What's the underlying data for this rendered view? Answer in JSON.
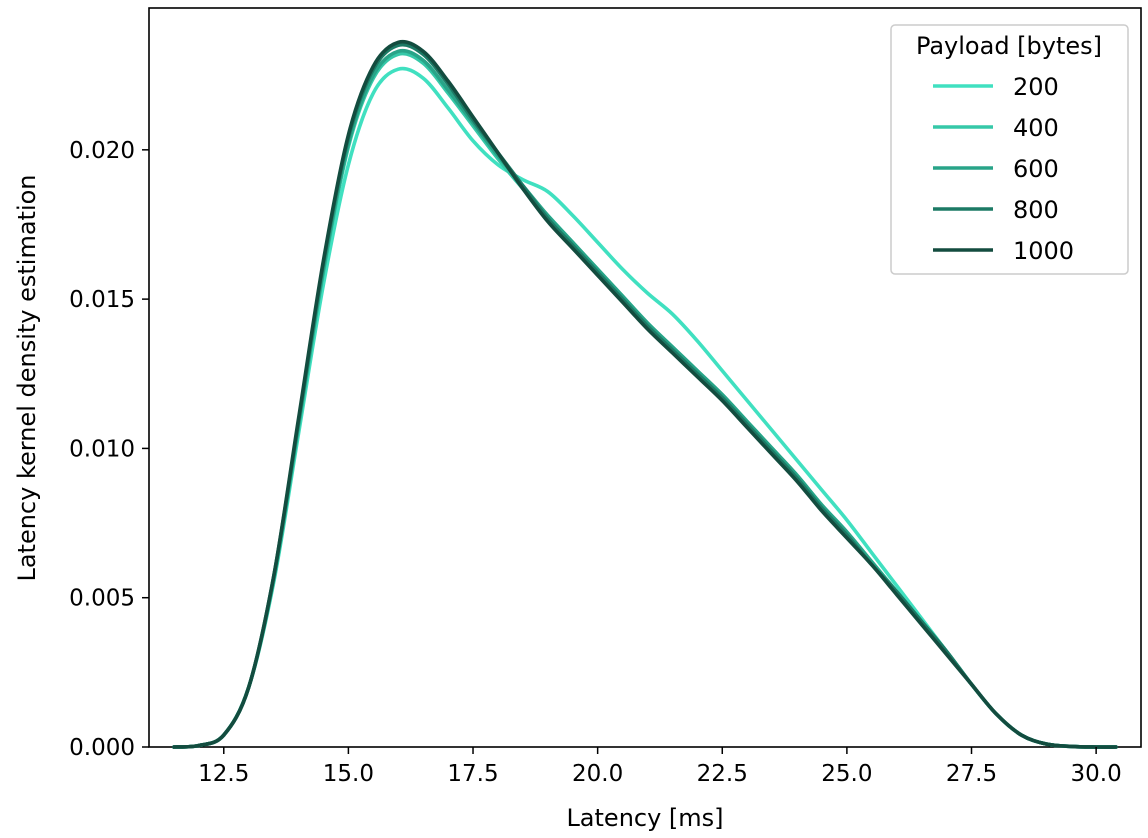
{
  "chart_data": {
    "type": "line",
    "title": "",
    "xlabel": "Latency [ms]",
    "ylabel": "Latency kernel density estimation",
    "xlim": [
      11.0,
      30.9
    ],
    "ylim": [
      0.0,
      0.02475
    ],
    "xticks": [
      12.5,
      15.0,
      17.5,
      20.0,
      22.5,
      25.0,
      27.5,
      30.0
    ],
    "xtick_labels": [
      "12.5",
      "15.0",
      "17.5",
      "20.0",
      "22.5",
      "25.0",
      "27.5",
      "30.0"
    ],
    "yticks": [
      0.0,
      0.005,
      0.01,
      0.015,
      0.02
    ],
    "ytick_labels": [
      "0.000",
      "0.005",
      "0.010",
      "0.015",
      "0.020"
    ],
    "grid": false,
    "legend": {
      "title": "Payload [bytes]",
      "position": "top-right"
    },
    "series": [
      {
        "name": "200",
        "color": "#40e0c0",
        "x": [
          11.5,
          12.0,
          12.5,
          13.0,
          13.5,
          14.0,
          14.5,
          15.0,
          15.5,
          16.0,
          16.5,
          17.0,
          17.5,
          18.0,
          18.5,
          19.0,
          19.5,
          20.0,
          20.5,
          21.0,
          21.5,
          22.0,
          22.5,
          23.0,
          23.5,
          24.0,
          24.5,
          25.0,
          25.5,
          26.0,
          26.5,
          27.0,
          27.5,
          28.0,
          28.5,
          29.0,
          29.5,
          30.0,
          30.4
        ],
        "y": [
          0.0,
          5e-05,
          0.0004,
          0.002,
          0.0055,
          0.0105,
          0.0155,
          0.0195,
          0.0219,
          0.0227,
          0.0224,
          0.0214,
          0.0203,
          0.0195,
          0.019,
          0.0186,
          0.0178,
          0.0169,
          0.016,
          0.0152,
          0.0145,
          0.0136,
          0.0126,
          0.0116,
          0.0106,
          0.0096,
          0.0086,
          0.0076,
          0.0065,
          0.0054,
          0.0043,
          0.0032,
          0.0021,
          0.0011,
          0.0004,
          0.0001,
          2e-05,
          0.0,
          0.0
        ]
      },
      {
        "name": "400",
        "color": "#36c8a8",
        "x": [
          11.5,
          12.0,
          12.5,
          13.0,
          13.5,
          14.0,
          14.5,
          15.0,
          15.5,
          16.0,
          16.5,
          17.0,
          17.5,
          18.0,
          18.5,
          19.0,
          19.5,
          20.0,
          20.5,
          21.0,
          21.5,
          22.0,
          22.5,
          23.0,
          23.5,
          24.0,
          24.5,
          25.0,
          25.5,
          26.0,
          26.5,
          27.0,
          27.5,
          28.0,
          28.5,
          29.0,
          29.5,
          30.0,
          30.4
        ],
        "y": [
          0.0,
          5e-05,
          0.0004,
          0.002,
          0.0056,
          0.0107,
          0.0159,
          0.0201,
          0.0224,
          0.0232,
          0.0229,
          0.0219,
          0.0208,
          0.0197,
          0.0187,
          0.0178,
          0.0169,
          0.016,
          0.0151,
          0.0142,
          0.0134,
          0.0126,
          0.0118,
          0.0109,
          0.01,
          0.0091,
          0.0081,
          0.0072,
          0.0062,
          0.0052,
          0.0042,
          0.0032,
          0.0021,
          0.0011,
          0.0004,
          0.0001,
          2e-05,
          0.0,
          0.0
        ]
      },
      {
        "name": "600",
        "color": "#28a488",
        "x": [
          11.5,
          12.0,
          12.5,
          13.0,
          13.5,
          14.0,
          14.5,
          15.0,
          15.5,
          16.0,
          16.5,
          17.0,
          17.5,
          18.0,
          18.5,
          19.0,
          19.5,
          20.0,
          20.5,
          21.0,
          21.5,
          22.0,
          22.5,
          23.0,
          23.5,
          24.0,
          24.5,
          25.0,
          25.5,
          26.0,
          26.5,
          27.0,
          27.5,
          28.0,
          28.5,
          29.0,
          29.5,
          30.0,
          30.4
        ],
        "y": [
          0.0,
          5e-05,
          0.0004,
          0.002,
          0.0056,
          0.0108,
          0.016,
          0.0202,
          0.0225,
          0.0233,
          0.023,
          0.022,
          0.0209,
          0.0198,
          0.0188,
          0.0178,
          0.0169,
          0.016,
          0.0151,
          0.0142,
          0.0134,
          0.0126,
          0.0118,
          0.0109,
          0.01,
          0.0091,
          0.0081,
          0.0072,
          0.0062,
          0.0052,
          0.0042,
          0.0032,
          0.0021,
          0.0011,
          0.0004,
          0.0001,
          2e-05,
          0.0,
          0.0
        ]
      },
      {
        "name": "800",
        "color": "#1c7a65",
        "x": [
          11.5,
          12.0,
          12.5,
          13.0,
          13.5,
          14.0,
          14.5,
          15.0,
          15.5,
          16.0,
          16.5,
          17.0,
          17.5,
          18.0,
          18.5,
          19.0,
          19.5,
          20.0,
          20.5,
          21.0,
          21.5,
          22.0,
          22.5,
          23.0,
          23.5,
          24.0,
          24.5,
          25.0,
          25.5,
          26.0,
          26.5,
          27.0,
          27.5,
          28.0,
          28.5,
          29.0,
          29.5,
          30.0,
          30.4
        ],
        "y": [
          0.0,
          5e-05,
          0.0004,
          0.002,
          0.0057,
          0.0109,
          0.0162,
          0.0204,
          0.0227,
          0.0235,
          0.0232,
          0.0222,
          0.021,
          0.0199,
          0.0188,
          0.0177,
          0.0168,
          0.0159,
          0.015,
          0.0141,
          0.0133,
          0.0125,
          0.0117,
          0.0108,
          0.0099,
          0.009,
          0.008,
          0.0071,
          0.0061,
          0.0052,
          0.0042,
          0.0032,
          0.0021,
          0.0011,
          0.0004,
          0.0001,
          2e-05,
          0.0,
          0.0
        ]
      },
      {
        "name": "1000",
        "color": "#134c3f",
        "x": [
          11.5,
          12.0,
          12.5,
          13.0,
          13.5,
          14.0,
          14.5,
          15.0,
          15.5,
          16.0,
          16.5,
          17.0,
          17.5,
          18.0,
          18.5,
          19.0,
          19.5,
          20.0,
          20.5,
          21.0,
          21.5,
          22.0,
          22.5,
          23.0,
          23.5,
          24.0,
          24.5,
          25.0,
          25.5,
          26.0,
          26.5,
          27.0,
          27.5,
          28.0,
          28.5,
          29.0,
          29.5,
          30.0,
          30.4
        ],
        "y": [
          0.0,
          5e-05,
          0.0004,
          0.002,
          0.0057,
          0.011,
          0.0163,
          0.0205,
          0.0228,
          0.0236,
          0.0233,
          0.0223,
          0.0211,
          0.0199,
          0.0187,
          0.0176,
          0.0167,
          0.0158,
          0.0149,
          0.014,
          0.0132,
          0.0124,
          0.0116,
          0.0107,
          0.0098,
          0.0089,
          0.0079,
          0.007,
          0.0061,
          0.0051,
          0.0041,
          0.0031,
          0.0021,
          0.0011,
          0.0004,
          0.0001,
          2e-05,
          0.0,
          0.0
        ]
      }
    ]
  }
}
